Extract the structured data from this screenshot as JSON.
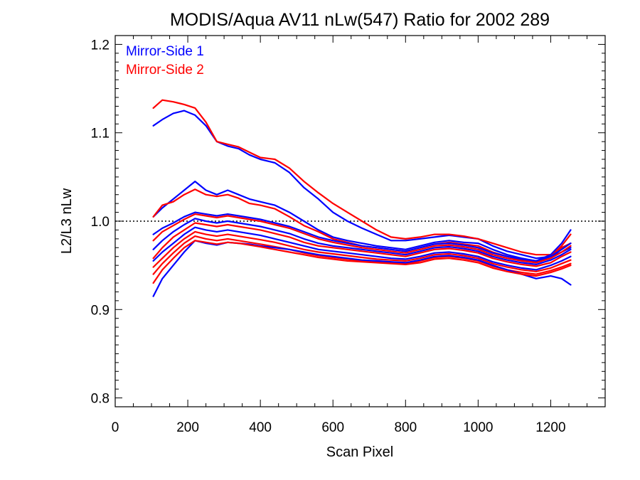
{
  "chart_data": {
    "type": "line",
    "title": "MODIS/Aqua AV11 nLw(547) Ratio for 2002 289",
    "xlabel": "Scan Pixel",
    "ylabel": "L2/L3 nLw",
    "xlim": [
      0,
      1350
    ],
    "ylim": [
      0.79,
      1.21
    ],
    "xticks": [
      0,
      200,
      400,
      600,
      800,
      1000,
      1200
    ],
    "xtick_labels": [
      "0",
      "200",
      "400",
      "600",
      "800",
      "1000",
      "1200"
    ],
    "yticks": [
      0.8,
      0.9,
      1.0,
      1.1,
      1.2
    ],
    "ytick_labels": [
      "0.8",
      "0.9",
      "1.0",
      "1.1",
      "1.2"
    ],
    "reference_line": {
      "y": 1.0,
      "style": "dotted"
    },
    "legend": {
      "placement": "top-left"
    },
    "colors": {
      "mirror_side_1": "#0000ff",
      "mirror_side_2": "#ff0000"
    },
    "x": [
      105,
      130,
      160,
      190,
      220,
      250,
      280,
      310,
      340,
      370,
      400,
      440,
      480,
      520,
      560,
      600,
      640,
      680,
      720,
      760,
      800,
      840,
      880,
      920,
      960,
      1000,
      1040,
      1080,
      1120,
      1160,
      1200,
      1230,
      1255
    ],
    "series": [
      {
        "name": "Mirror-Side 1",
        "color": "#0000ff",
        "values": [
          1.108,
          1.115,
          1.122,
          1.125,
          1.12,
          1.108,
          1.09,
          1.085,
          1.082,
          1.075,
          1.07,
          1.066,
          1.055,
          1.038,
          1.025,
          1.01,
          1.0,
          0.992,
          0.985,
          0.978,
          0.978,
          0.98,
          0.982,
          0.984,
          0.982,
          0.98,
          0.972,
          0.966,
          0.962,
          0.958,
          0.96,
          0.965,
          0.97
        ]
      },
      {
        "name": "Mirror-Side 2",
        "color": "#ff0000",
        "values": [
          1.128,
          1.137,
          1.135,
          1.132,
          1.128,
          1.112,
          1.09,
          1.087,
          1.084,
          1.078,
          1.072,
          1.07,
          1.06,
          1.045,
          1.032,
          1.02,
          1.01,
          1.0,
          0.99,
          0.982,
          0.98,
          0.982,
          0.985,
          0.985,
          0.983,
          0.98,
          0.975,
          0.97,
          0.965,
          0.962,
          0.962,
          0.97,
          0.975
        ]
      },
      {
        "name": "Mirror-Side 1",
        "color": "#0000ff",
        "values": [
          1.005,
          1.015,
          1.025,
          1.035,
          1.045,
          1.035,
          1.03,
          1.035,
          1.03,
          1.025,
          1.022,
          1.018,
          1.01,
          1.0,
          0.99,
          0.982,
          0.978,
          0.975,
          0.972,
          0.97,
          0.968,
          0.972,
          0.976,
          0.978,
          0.976,
          0.975,
          0.968,
          0.962,
          0.958,
          0.955,
          0.962,
          0.975,
          0.99
        ]
      },
      {
        "name": "Mirror-Side 2",
        "color": "#ff0000",
        "values": [
          1.005,
          1.018,
          1.022,
          1.03,
          1.036,
          1.03,
          1.028,
          1.03,
          1.026,
          1.02,
          1.018,
          1.014,
          1.005,
          0.995,
          0.988,
          0.98,
          0.976,
          0.972,
          0.97,
          0.968,
          0.966,
          0.97,
          0.974,
          0.976,
          0.974,
          0.972,
          0.965,
          0.96,
          0.956,
          0.954,
          0.96,
          0.972,
          0.985
        ]
      },
      {
        "name": "Mirror-Side 1",
        "color": "#0000ff",
        "values": [
          0.985,
          0.992,
          0.998,
          1.005,
          1.01,
          1.008,
          1.006,
          1.008,
          1.006,
          1.004,
          1.002,
          0.998,
          0.994,
          0.988,
          0.982,
          0.978,
          0.975,
          0.972,
          0.97,
          0.968,
          0.966,
          0.97,
          0.974,
          0.975,
          0.973,
          0.97,
          0.964,
          0.96,
          0.957,
          0.955,
          0.96,
          0.968,
          0.975
        ]
      },
      {
        "name": "Mirror-Side 2",
        "color": "#ff0000",
        "values": [
          0.978,
          0.988,
          0.995,
          1.002,
          1.008,
          1.006,
          1.004,
          1.006,
          1.004,
          1.002,
          1.0,
          0.996,
          0.992,
          0.986,
          0.98,
          0.976,
          0.973,
          0.97,
          0.968,
          0.966,
          0.964,
          0.968,
          0.972,
          0.973,
          0.971,
          0.968,
          0.962,
          0.958,
          0.955,
          0.953,
          0.958,
          0.965,
          0.972
        ]
      },
      {
        "name": "Mirror-Side 1",
        "color": "#0000ff",
        "values": [
          0.968,
          0.978,
          0.988,
          0.996,
          1.003,
          1.0,
          0.998,
          1.0,
          0.998,
          0.996,
          0.994,
          0.99,
          0.986,
          0.98,
          0.975,
          0.972,
          0.97,
          0.968,
          0.966,
          0.964,
          0.962,
          0.966,
          0.97,
          0.971,
          0.969,
          0.966,
          0.96,
          0.956,
          0.953,
          0.951,
          0.956,
          0.962,
          0.968
        ]
      },
      {
        "name": "Mirror-Side 2",
        "color": "#ff0000",
        "values": [
          0.958,
          0.97,
          0.982,
          0.99,
          0.998,
          0.996,
          0.994,
          0.996,
          0.994,
          0.992,
          0.99,
          0.986,
          0.982,
          0.976,
          0.972,
          0.97,
          0.968,
          0.966,
          0.964,
          0.962,
          0.96,
          0.964,
          0.968,
          0.969,
          0.967,
          0.964,
          0.958,
          0.954,
          0.951,
          0.949,
          0.953,
          0.96,
          0.965
        ]
      },
      {
        "name": "Mirror-Side 1",
        "color": "#0000ff",
        "values": [
          0.955,
          0.965,
          0.975,
          0.985,
          0.993,
          0.99,
          0.988,
          0.99,
          0.988,
          0.986,
          0.984,
          0.98,
          0.976,
          0.972,
          0.968,
          0.966,
          0.964,
          0.962,
          0.96,
          0.958,
          0.957,
          0.96,
          0.964,
          0.965,
          0.963,
          0.96,
          0.954,
          0.95,
          0.947,
          0.945,
          0.95,
          0.955,
          0.96
        ]
      },
      {
        "name": "Mirror-Side 2",
        "color": "#ff0000",
        "values": [
          0.948,
          0.958,
          0.97,
          0.98,
          0.988,
          0.985,
          0.983,
          0.985,
          0.983,
          0.981,
          0.979,
          0.976,
          0.972,
          0.968,
          0.965,
          0.963,
          0.961,
          0.959,
          0.957,
          0.956,
          0.955,
          0.958,
          0.962,
          0.963,
          0.961,
          0.958,
          0.952,
          0.948,
          0.945,
          0.943,
          0.947,
          0.952,
          0.956
        ]
      },
      {
        "name": "Mirror-Side 2",
        "color": "#ff0000",
        "values": [
          0.94,
          0.952,
          0.964,
          0.975,
          0.983,
          0.98,
          0.978,
          0.98,
          0.978,
          0.976,
          0.974,
          0.971,
          0.968,
          0.964,
          0.961,
          0.959,
          0.957,
          0.955,
          0.954,
          0.953,
          0.952,
          0.955,
          0.959,
          0.96,
          0.958,
          0.955,
          0.949,
          0.945,
          0.942,
          0.94,
          0.944,
          0.948,
          0.952
        ]
      },
      {
        "name": "Mirror-Side 1",
        "color": "#0000ff",
        "values": [
          0.915,
          0.935,
          0.95,
          0.965,
          0.978,
          0.975,
          0.973,
          0.976,
          0.975,
          0.974,
          0.972,
          0.97,
          0.968,
          0.965,
          0.962,
          0.96,
          0.958,
          0.956,
          0.955,
          0.954,
          0.953,
          0.956,
          0.96,
          0.961,
          0.959,
          0.956,
          0.95,
          0.945,
          0.94,
          0.935,
          0.938,
          0.935,
          0.928
        ]
      },
      {
        "name": "Mirror-Side 2",
        "color": "#ff0000",
        "values": [
          0.93,
          0.945,
          0.958,
          0.97,
          0.978,
          0.976,
          0.974,
          0.976,
          0.975,
          0.973,
          0.971,
          0.968,
          0.965,
          0.962,
          0.959,
          0.957,
          0.955,
          0.954,
          0.953,
          0.952,
          0.951,
          0.953,
          0.957,
          0.958,
          0.956,
          0.953,
          0.947,
          0.943,
          0.94,
          0.938,
          0.942,
          0.946,
          0.95
        ]
      }
    ]
  }
}
